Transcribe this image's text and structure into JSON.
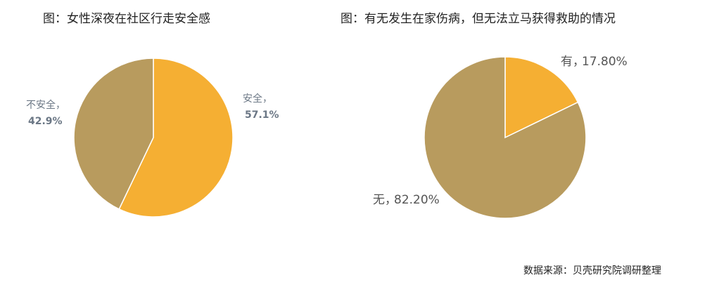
{
  "chart_data": [
    {
      "type": "pie",
      "title": "图：女性深夜在社区行走安全感",
      "categories": [
        "安全，",
        "不安全，"
      ],
      "values": [
        57.1,
        42.9
      ],
      "value_labels": [
        "57.1%",
        "42.9%"
      ],
      "colors": [
        "#f5af33",
        "#b89b5e"
      ]
    },
    {
      "type": "pie",
      "title": "图：有无发生在家伤病，但无法立马获得救助的情况",
      "categories": [
        "有，",
        "无，"
      ],
      "values": [
        17.8,
        82.2
      ],
      "value_labels": [
        "17.80%",
        "82.20%"
      ],
      "colors": [
        "#f5af33",
        "#b89b5e"
      ]
    }
  ],
  "source": "数据来源：贝壳研究院调研整理"
}
